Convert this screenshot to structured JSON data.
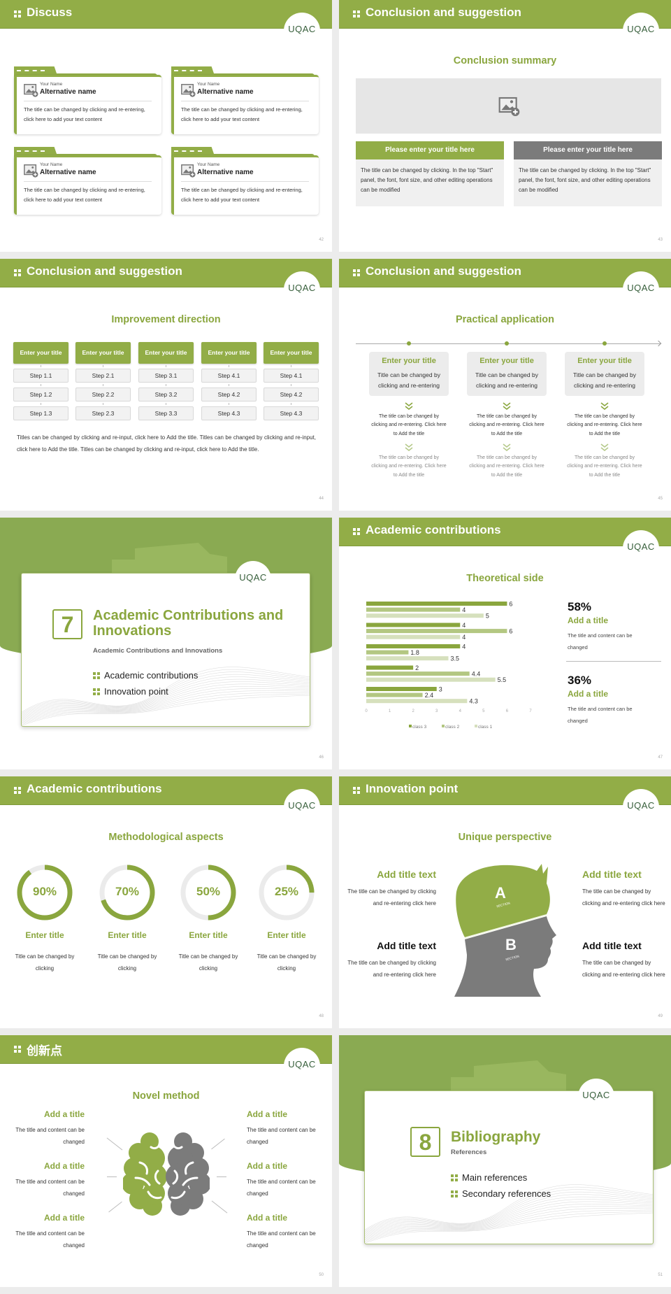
{
  "brand": {
    "logo": "UQAC",
    "accent": "#92ad47",
    "gray": "#7b7b7b"
  },
  "slides": [
    {
      "page": "42",
      "header": "Discuss",
      "cards": [
        {
          "label": "Your Name",
          "name": "Alternative name",
          "text": "The title can be changed by clicking and re-entering, click here to add your text content"
        },
        {
          "label": "Your Name",
          "name": "Alternative name",
          "text": "The title can be changed by clicking and re-entering, click here to add your text content"
        },
        {
          "label": "Your Name",
          "name": "Alternative name",
          "text": "The title can be changed by clicking and re-entering, click here to add your text content"
        },
        {
          "label": "Your Name",
          "name": "Alternative name",
          "text": "The title can be changed by clicking and re-entering, click here to add your text content"
        }
      ]
    },
    {
      "page": "43",
      "header": "Conclusion and suggestion",
      "subtitle": "Conclusion summary",
      "boxes": [
        {
          "title": "Please enter your title here",
          "text": "The title can be changed by clicking. In the top \"Start\" panel, the font, font size, and other editing operations can be modified",
          "color": "#92ad47"
        },
        {
          "title": "Please enter your title here",
          "text": "The title can be changed by clicking. In the top \"Start\" panel, the font, font size, and other editing operations can be modified",
          "color": "#7b7b7b"
        }
      ]
    },
    {
      "page": "44",
      "header": "Conclusion and suggestion",
      "subtitle": "Improvement direction",
      "columns": [
        {
          "title": "Enter your title",
          "steps": [
            "Step 1.1",
            "Step 1.2",
            "Step 1.3"
          ]
        },
        {
          "title": "Enter your title",
          "steps": [
            "Step 2.1",
            "Step 2.2",
            "Step 2.3"
          ]
        },
        {
          "title": "Enter your title",
          "steps": [
            "Step 3.1",
            "Step 3.2",
            "Step 3.3"
          ]
        },
        {
          "title": "Enter your title",
          "steps": [
            "Step 4.1",
            "Step 4.2",
            "Step 4.3"
          ]
        },
        {
          "title": "Enter your title",
          "steps": [
            "Step 4.1",
            "Step 4.2",
            "Step 4.3"
          ]
        }
      ],
      "paragraph": "Titles can be changed by clicking and re-input, click here to Add the title. Titles can be changed by clicking and re-input, click here to Add the title. Titles can be changed by clicking and re-input, click here to Add the title."
    },
    {
      "page": "45",
      "header": "Conclusion and suggestion",
      "subtitle": "Practical application",
      "items": [
        {
          "title": "Enter your title",
          "text": "Title can be changed by clicking and re-entering",
          "detail1": "The title can be changed by clicking and re-entering. Click here to Add the title",
          "detail2": "The title can be changed by clicking and re-entering. Click here to Add the title"
        },
        {
          "title": "Enter your title",
          "text": "Title can be changed by clicking and re-entering",
          "detail1": "The title can be changed by clicking and re-entering. Click here to Add the title",
          "detail2": "The title can be changed by clicking and re-entering. Click here to Add the title"
        },
        {
          "title": "Enter your title",
          "text": "Title can be changed by clicking and re-entering",
          "detail1": "The title can be changed by clicking and re-entering. Click here to Add the title",
          "detail2": "The title can be changed by clicking and re-entering. Click here to Add the title"
        }
      ]
    },
    {
      "page": "46",
      "section": {
        "number": "7",
        "title": "Academic Contributions and Innovations",
        "subtitle": "Academic Contributions and Innovations",
        "bullets": [
          "Academic contributions",
          "Innovation point"
        ]
      }
    },
    {
      "page": "47",
      "header": "Academic contributions",
      "subtitle": "Theoretical side",
      "stats": [
        {
          "value": "58%",
          "title": "Add a title",
          "text": "The title and content can be changed"
        },
        {
          "value": "36%",
          "title": "Add a title",
          "text": "The title and content can be changed"
        }
      ]
    },
    {
      "page": "48",
      "header": "Academic contributions",
      "subtitle": "Methodological aspects",
      "rings": [
        {
          "value": 90,
          "label": "90%",
          "title": "Enter title",
          "text": "Title can be changed by clicking"
        },
        {
          "value": 70,
          "label": "70%",
          "title": "Enter title",
          "text": "Title can be changed by clicking"
        },
        {
          "value": 50,
          "label": "50%",
          "title": "Enter title",
          "text": "Title can be changed by clicking"
        },
        {
          "value": 25,
          "label": "25%",
          "title": "Enter title",
          "text": "Title can be changed by clicking"
        }
      ]
    },
    {
      "page": "49",
      "header": "Innovation point",
      "subtitle": "Unique perspective",
      "head": {
        "a": "A",
        "b": "B",
        "section": "SECTION"
      },
      "items": [
        {
          "title": "Add title text",
          "text": "The title can be changed by clicking and re-entering click here",
          "color": "#8aa63e"
        },
        {
          "title": "Add title text",
          "text": "The title can be changed by clicking and re-entering click here",
          "color": "#111111"
        },
        {
          "title": "Add title text",
          "text": "The title can be changed by clicking and re-entering click here",
          "color": "#8aa63e"
        },
        {
          "title": "Add title text",
          "text": "The title can be changed by clicking and re-entering click here",
          "color": "#111111"
        }
      ]
    },
    {
      "page": "50",
      "header": "创新点",
      "subtitle": "Novel method",
      "items": [
        {
          "title": "Add a title",
          "text": "The title and content can be changed"
        },
        {
          "title": "Add a title",
          "text": "The title and content can be changed"
        },
        {
          "title": "Add a title",
          "text": "The title and content can be changed"
        },
        {
          "title": "Add a title",
          "text": "The title and content can be changed"
        },
        {
          "title": "Add a title",
          "text": "The title and content can be changed"
        },
        {
          "title": "Add a title",
          "text": "The title and content can be changed"
        }
      ]
    },
    {
      "page": "51",
      "section": {
        "number": "8",
        "title": "Bibliography",
        "subtitle": "References",
        "bullets": [
          "Main references",
          "Secondary references"
        ]
      }
    }
  ],
  "chart_data": {
    "type": "bar",
    "orientation": "horizontal",
    "title": "Theoretical side",
    "xlim": [
      0,
      7
    ],
    "xticks": [
      "0",
      "1",
      "2",
      "3",
      "4",
      "5",
      "6",
      "7"
    ],
    "grid": false,
    "legend": "bottom",
    "series": [
      {
        "name": "class 3",
        "color": "#8aa63e",
        "values": [
          6,
          4,
          4,
          2,
          3
        ]
      },
      {
        "name": "class 2",
        "color": "#b3c782",
        "values": [
          4,
          6,
          1.8,
          4.4,
          2.4
        ]
      },
      {
        "name": "class 1",
        "color": "#d6e0bd",
        "values": [
          5,
          4,
          3.5,
          5.5,
          4.3
        ]
      }
    ]
  }
}
